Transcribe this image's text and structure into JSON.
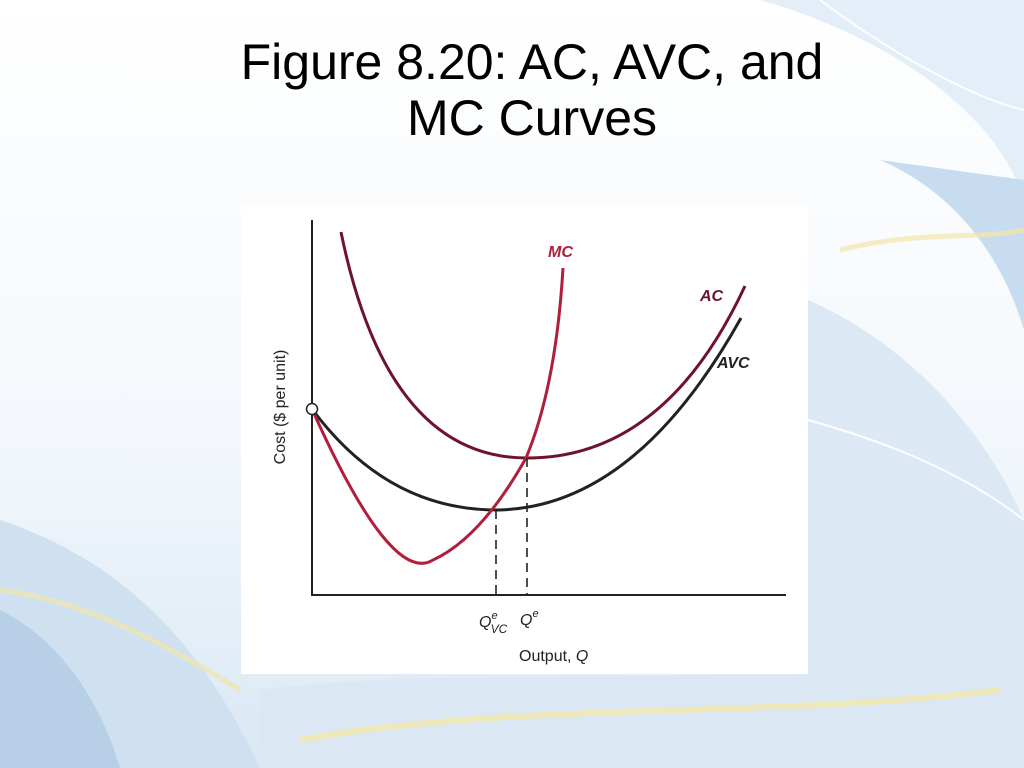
{
  "slide": {
    "title_line1": "Figure 8.20: AC, AVC, and",
    "title_line2": "MC Curves"
  },
  "figure": {
    "y_axis_label": "Cost ($ per unit)",
    "x_axis_label": "Output, ",
    "x_axis_symbol": "Q",
    "curves": {
      "mc": "MC",
      "ac": "AC",
      "avc": "AVC"
    },
    "ticks": {
      "q_avc_base": "Q",
      "q_avc_sup": "e",
      "q_avc_sub": "VC",
      "q_ac_base": "Q",
      "q_ac_sup": "e"
    }
  },
  "colors": {
    "mc": "#b01e3c",
    "ac": "#6e1230",
    "avc": "#222222",
    "axis": "#222222"
  }
}
